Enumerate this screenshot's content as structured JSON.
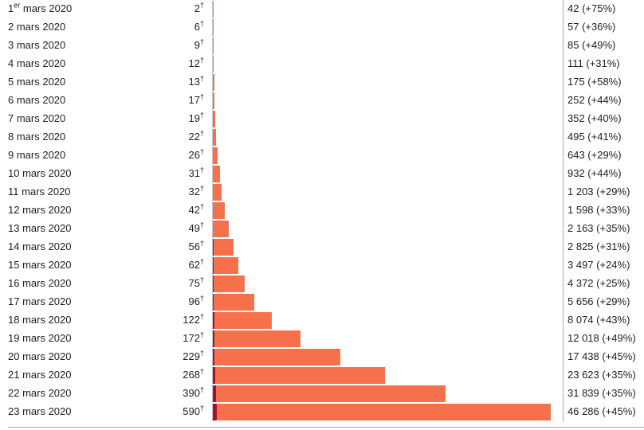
{
  "chart_data": {
    "type": "bar",
    "orientation": "horizontal",
    "dagger": "†",
    "max_cases": 46286,
    "categories": [
      {
        "day": "1",
        "sup": "er",
        "rest": " mars 2020"
      },
      {
        "day": "2 mars 2020",
        "sup": "",
        "rest": ""
      },
      {
        "day": "3 mars 2020",
        "sup": "",
        "rest": ""
      },
      {
        "day": "4 mars 2020",
        "sup": "",
        "rest": ""
      },
      {
        "day": "5 mars 2020",
        "sup": "",
        "rest": ""
      },
      {
        "day": "6 mars 2020",
        "sup": "",
        "rest": ""
      },
      {
        "day": "7 mars 2020",
        "sup": "",
        "rest": ""
      },
      {
        "day": "8 mars 2020",
        "sup": "",
        "rest": ""
      },
      {
        "day": "9 mars 2020",
        "sup": "",
        "rest": ""
      },
      {
        "day": "10 mars 2020",
        "sup": "",
        "rest": ""
      },
      {
        "day": "11 mars 2020",
        "sup": "",
        "rest": ""
      },
      {
        "day": "12 mars 2020",
        "sup": "",
        "rest": ""
      },
      {
        "day": "13 mars 2020",
        "sup": "",
        "rest": ""
      },
      {
        "day": "14 mars 2020",
        "sup": "",
        "rest": ""
      },
      {
        "day": "15 mars 2020",
        "sup": "",
        "rest": ""
      },
      {
        "day": "16 mars 2020",
        "sup": "",
        "rest": ""
      },
      {
        "day": "17 mars 2020",
        "sup": "",
        "rest": ""
      },
      {
        "day": "18 mars 2020",
        "sup": "",
        "rest": ""
      },
      {
        "day": "19 mars 2020",
        "sup": "",
        "rest": ""
      },
      {
        "day": "20 mars 2020",
        "sup": "",
        "rest": ""
      },
      {
        "day": "21 mars 2020",
        "sup": "",
        "rest": ""
      },
      {
        "day": "22 mars 2020",
        "sup": "",
        "rest": ""
      },
      {
        "day": "23 mars 2020",
        "sup": "",
        "rest": ""
      }
    ],
    "series": [
      {
        "key": "deaths",
        "color": "#a50f2d",
        "values": [
          2,
          6,
          9,
          12,
          13,
          17,
          19,
          22,
          26,
          31,
          32,
          42,
          49,
          56,
          62,
          75,
          96,
          122,
          172,
          229,
          268,
          390,
          590
        ]
      },
      {
        "key": "cases",
        "color": "#f5704b",
        "values": [
          42,
          57,
          85,
          111,
          175,
          252,
          352,
          495,
          643,
          932,
          1203,
          1598,
          2163,
          2825,
          3497,
          4372,
          5656,
          8074,
          12018,
          17438,
          23623,
          31839,
          46286
        ]
      }
    ],
    "case_labels": [
      "42 (+75%)",
      "57 (+36%)",
      "85 (+49%)",
      "111 (+31%)",
      "175 (+58%)",
      "252 (+44%)",
      "352 (+40%)",
      "495 (+41%)",
      "643 (+29%)",
      "932 (+44%)",
      "1 203 (+29%)",
      "1 598 (+33%)",
      "2 163 (+35%)",
      "2 825 (+31%)",
      "3 497 (+24%)",
      "4 372 (+25%)",
      "5 656 (+29%)",
      "8 074 (+43%)",
      "12 018 (+49%)",
      "17 438 (+45%)",
      "23 623 (+35%)",
      "31 839 (+35%)",
      "46 286 (+45%)"
    ]
  }
}
